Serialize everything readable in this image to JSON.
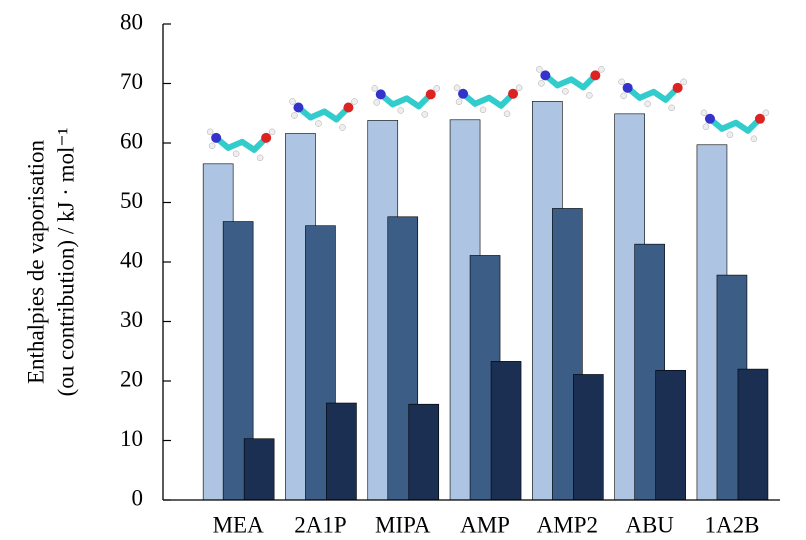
{
  "chart_data": {
    "type": "bar",
    "y_label": [
      "Enthalpies de vaporisation",
      "(ou contribution) / kJ · mol⁻¹"
    ],
    "categories": [
      "MEA",
      "2A1P",
      "MIPA",
      "AMP",
      "AMP2",
      "ABU",
      "1A2B"
    ],
    "series": [
      {
        "color": "#adc4e2",
        "values": [
          56.5,
          61.6,
          63.8,
          63.9,
          67.0,
          64.9,
          59.7
        ]
      },
      {
        "color": "#3c5d85",
        "values": [
          46.8,
          46.1,
          47.6,
          41.1,
          49.0,
          43.0,
          37.8
        ]
      },
      {
        "color": "#1a2f52",
        "values": [
          10.3,
          16.3,
          16.1,
          23.3,
          21.1,
          21.8,
          22.0
        ]
      }
    ],
    "ylim": [
      0,
      80
    ],
    "yticks": [
      0,
      10,
      20,
      30,
      40,
      50,
      60,
      70,
      80
    ]
  }
}
